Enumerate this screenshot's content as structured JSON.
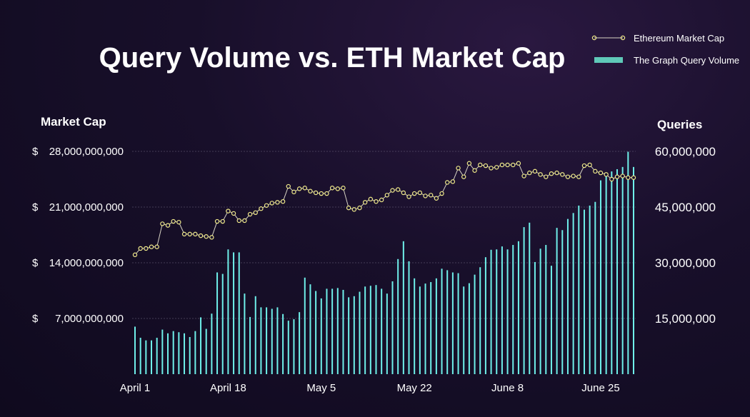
{
  "chart_data": {
    "type": "bar+line",
    "title": "Query Volume vs. ETH Market Cap",
    "left_axis": {
      "label": "Market Cap",
      "currency_symbol": "$",
      "ticks": [
        "$",
        "$",
        "$",
        "$"
      ],
      "tick_labels": [
        "28,000,000,000",
        "21,000,000,000",
        "14,000,000,000",
        "7,000,000,000"
      ],
      "tick_values": [
        28000000000,
        21000000000,
        14000000000,
        7000000000
      ],
      "ylim": [
        0,
        28000000000
      ]
    },
    "right_axis": {
      "label": "Queries",
      "tick_labels": [
        "60,000,000",
        "45,000,000",
        "30,000,000",
        "15,000,000"
      ],
      "tick_values": [
        60000000,
        45000000,
        30000000,
        15000000
      ],
      "ylim": [
        0,
        60000000
      ]
    },
    "x_axis": {
      "tick_labels": [
        "April 1",
        "April 18",
        "May 5",
        "May 22",
        "June 8",
        "June 25"
      ]
    },
    "legend": {
      "placement": "top-right",
      "items": [
        "Ethereum Market Cap",
        "The Graph Query Volume"
      ]
    },
    "colors": {
      "line": "#f2eb8a",
      "line_stroke": "#d8d4c4",
      "bars": "#6ff0ea",
      "grid": "#6e6680"
    },
    "series": [
      {
        "name": "Ethereum Market Cap",
        "kind": "line",
        "axis": "left",
        "values": [
          15000000000,
          15800000000,
          15800000000,
          16000000000,
          16000000000,
          18900000000,
          18700000000,
          19200000000,
          19100000000,
          17600000000,
          17600000000,
          17600000000,
          17400000000,
          17300000000,
          17200000000,
          19200000000,
          19200000000,
          20500000000,
          20200000000,
          19300000000,
          19300000000,
          20100000000,
          20300000000,
          20800000000,
          21200000000,
          21500000000,
          21600000000,
          21700000000,
          23600000000,
          22900000000,
          23300000000,
          23400000000,
          23000000000,
          22800000000,
          22700000000,
          22700000000,
          23400000000,
          23300000000,
          23400000000,
          20900000000,
          20700000000,
          20900000000,
          21600000000,
          22000000000,
          21700000000,
          21900000000,
          22500000000,
          23100000000,
          23200000000,
          22800000000,
          22300000000,
          22700000000,
          22800000000,
          22400000000,
          22500000000,
          22100000000,
          22700000000,
          24100000000,
          24200000000,
          25900000000,
          24800000000,
          26500000000,
          25600000000,
          26300000000,
          26200000000,
          25900000000,
          26000000000,
          26300000000,
          26300000000,
          26300000000,
          26500000000,
          24900000000,
          25300000000,
          25500000000,
          25100000000,
          24800000000,
          25200000000,
          25300000000,
          25100000000,
          24800000000,
          24900000000,
          24800000000,
          26200000000,
          26300000000,
          25500000000,
          25300000000,
          25100000000,
          24500000000,
          24800000000,
          24900000000,
          24700000000,
          24700000000
        ]
      },
      {
        "name": "The Graph Query Volume",
        "kind": "bar",
        "axis": "right",
        "values": [
          12800000,
          9800000,
          9100000,
          9100000,
          9800000,
          12000000,
          11000000,
          11600000,
          11300000,
          11000000,
          10000000,
          11600000,
          15300000,
          12200000,
          16300000,
          27400000,
          27000000,
          33600000,
          32800000,
          32800000,
          21700000,
          15400000,
          21000000,
          18000000,
          18000000,
          17600000,
          18000000,
          16200000,
          14400000,
          14800000,
          16700000,
          26000000,
          24200000,
          22400000,
          20400000,
          23000000,
          23000000,
          23200000,
          22700000,
          20700000,
          21000000,
          22200000,
          23600000,
          23800000,
          24000000,
          23000000,
          21700000,
          25000000,
          31000000,
          35800000,
          30400000,
          25800000,
          23600000,
          24400000,
          24800000,
          25800000,
          28400000,
          28000000,
          27400000,
          27200000,
          23600000,
          24500000,
          26800000,
          28800000,
          31500000,
          33500000,
          33600000,
          34400000,
          33600000,
          34800000,
          35800000,
          39600000,
          40800000,
          30200000,
          33800000,
          34800000,
          29200000,
          39400000,
          38800000,
          41800000,
          43400000,
          45400000,
          44300000,
          45400000,
          46400000,
          52200000,
          54000000,
          54600000,
          55200000,
          55800000,
          59900000,
          55800000
        ]
      }
    ]
  }
}
